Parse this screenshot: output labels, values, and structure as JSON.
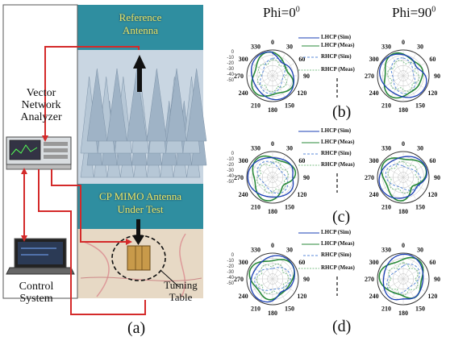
{
  "labels": {
    "vna_line1": "Vector",
    "vna_line2": "Network",
    "vna_line3": "Analyzer",
    "control_line1": "Control",
    "control_line2": "System",
    "reference_line1": "Reference",
    "reference_line2": "Antenna",
    "aut_line1": "CP MIMO Antenna",
    "aut_line2": "Under Test",
    "turning_line1": "Turning",
    "turning_line2": "Table",
    "sub_a": "(a)",
    "sub_b": "(b)",
    "sub_c": "(c)",
    "sub_d": "(d)"
  },
  "columns": {
    "phi0": "Phi=0",
    "phi90": "Phi=90",
    "degree": "0"
  },
  "legend": {
    "lhcp_sim": "LHCP (Sim)",
    "lhcp_meas": "LHCP (Meas)",
    "rhcp_sim": "RHCP (Sim)",
    "rhcp_meas": "RHCP (Meas)"
  },
  "polar": {
    "angle_labels": [
      "0",
      "30",
      "60",
      "90",
      "120",
      "150",
      "180",
      "210",
      "240",
      "270",
      "300",
      "330"
    ],
    "radial_labels": [
      "0",
      "-10",
      "-20",
      "-30",
      "-40",
      "-50"
    ],
    "colors": {
      "lhcp_sim": "#1a3fb5",
      "lhcp_meas": "#2a8a3a",
      "rhcp_sim": "#5a8ad8",
      "rhcp_meas": "#7fc08a"
    }
  }
}
